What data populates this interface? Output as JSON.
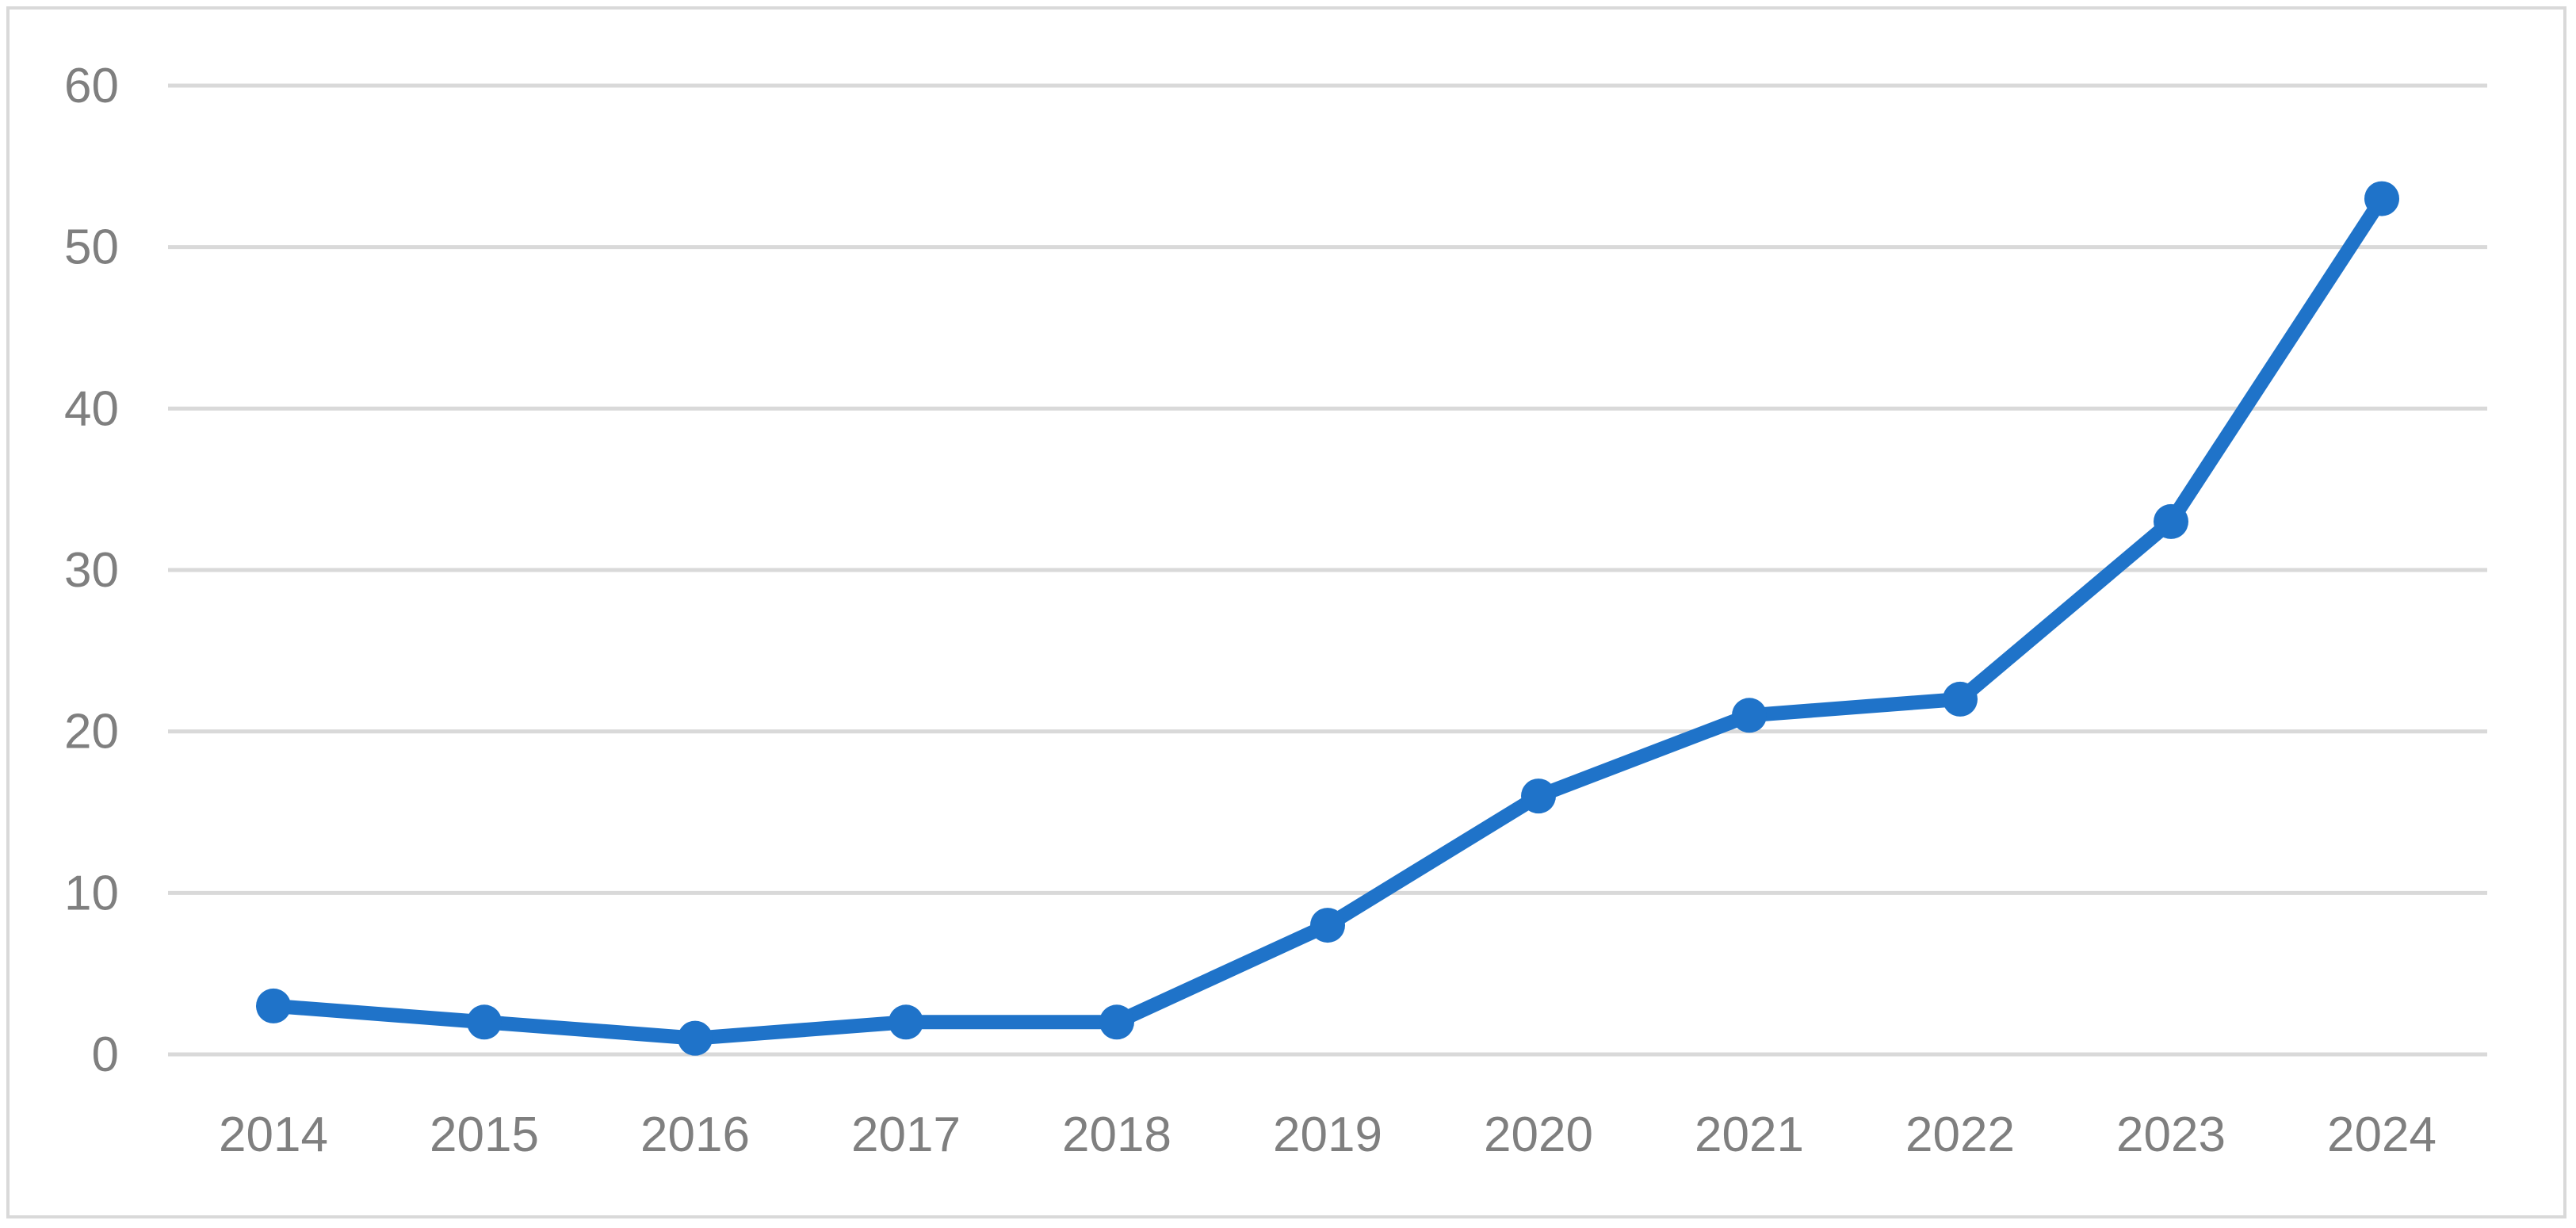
{
  "chart_data": {
    "type": "line",
    "title": "",
    "xlabel": "",
    "ylabel": "",
    "categories": [
      "2014",
      "2015",
      "2016",
      "2017",
      "2018",
      "2019",
      "2020",
      "2021",
      "2022",
      "2023",
      "2024"
    ],
    "series": [
      {
        "values": [
          3,
          2,
          1,
          2,
          2,
          8,
          16,
          21,
          22,
          33,
          53
        ],
        "color": "#1f73c9",
        "marker": "circle"
      }
    ],
    "ylim": [
      0,
      60
    ],
    "yticks": [
      "0",
      "10",
      "20",
      "30",
      "40",
      "50",
      "60"
    ],
    "grid": true,
    "legend": "none"
  }
}
